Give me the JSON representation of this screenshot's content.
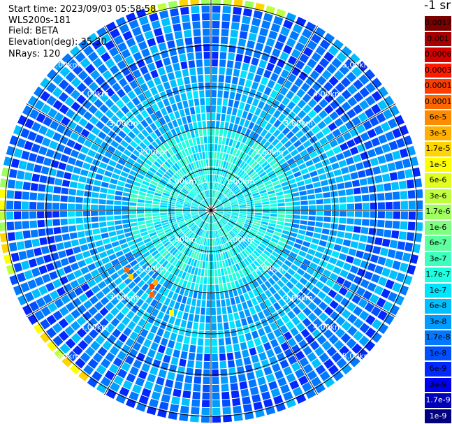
{
  "info": {
    "start_time": "Start time: 2023/09/03 05:58:58",
    "instrument": "WLS200s-181",
    "field": "Field: BETA",
    "elevation": "Elevation(deg): 35.30",
    "nrays": "NRays: 120"
  },
  "units": "-1 sr",
  "colorbar": [
    {
      "label": "0.0017",
      "bg": "#7a0000",
      "fg": "#000000"
    },
    {
      "label": "0.001",
      "bg": "#a80000",
      "fg": "#000000"
    },
    {
      "label": "0.0006",
      "bg": "#d40000",
      "fg": "#000000"
    },
    {
      "label": "0.0003",
      "bg": "#ff1a00",
      "fg": "#000000"
    },
    {
      "label": "0.00017",
      "bg": "#ff3d00",
      "fg": "#000000"
    },
    {
      "label": "0.0001",
      "bg": "#ff6600",
      "fg": "#000000"
    },
    {
      "label": "6e-5",
      "bg": "#ff8c00",
      "fg": "#000000"
    },
    {
      "label": "3e-5",
      "bg": "#ffb000",
      "fg": "#000000"
    },
    {
      "label": "1.7e-5",
      "bg": "#ffd400",
      "fg": "#000000"
    },
    {
      "label": "1e-5",
      "bg": "#ffff00",
      "fg": "#000000"
    },
    {
      "label": "6e-6",
      "bg": "#e0ff1f",
      "fg": "#000000"
    },
    {
      "label": "3e-6",
      "bg": "#c0ff3f",
      "fg": "#000000"
    },
    {
      "label": "1.7e-6",
      "bg": "#9fff5f",
      "fg": "#000000"
    },
    {
      "label": "1e-6",
      "bg": "#7fff7f",
      "fg": "#000000"
    },
    {
      "label": "6e-7",
      "bg": "#5fff9f",
      "fg": "#000000"
    },
    {
      "label": "3e-7",
      "bg": "#3fffbf",
      "fg": "#000000"
    },
    {
      "label": "1.7e-7",
      "bg": "#1fffdf",
      "fg": "#000000"
    },
    {
      "label": "1e-7",
      "bg": "#00e5ff",
      "fg": "#000000"
    },
    {
      "label": "6e-8",
      "bg": "#00c0ff",
      "fg": "#000000"
    },
    {
      "label": "3e-8",
      "bg": "#009cff",
      "fg": "#000000"
    },
    {
      "label": "1.7e-8",
      "bg": "#0078ff",
      "fg": "#000000"
    },
    {
      "label": "1e-8",
      "bg": "#0050ff",
      "fg": "#000000"
    },
    {
      "label": "6e-9",
      "bg": "#0028ff",
      "fg": "#000000"
    },
    {
      "label": "3e-9",
      "bg": "#0000ee",
      "fg": "#000000"
    },
    {
      "label": "1.7e-9",
      "bg": "#0000b8",
      "fg": "#ffffff"
    },
    {
      "label": "1e-9",
      "bg": "#000080",
      "fg": "#ffffff"
    }
  ],
  "range_rings": [
    {
      "label": "1.00km"
    },
    {
      "label": "2.00km"
    },
    {
      "label": "3.00km"
    },
    {
      "label": "4.00km"
    },
    {
      "label": "5.00km"
    }
  ]
}
